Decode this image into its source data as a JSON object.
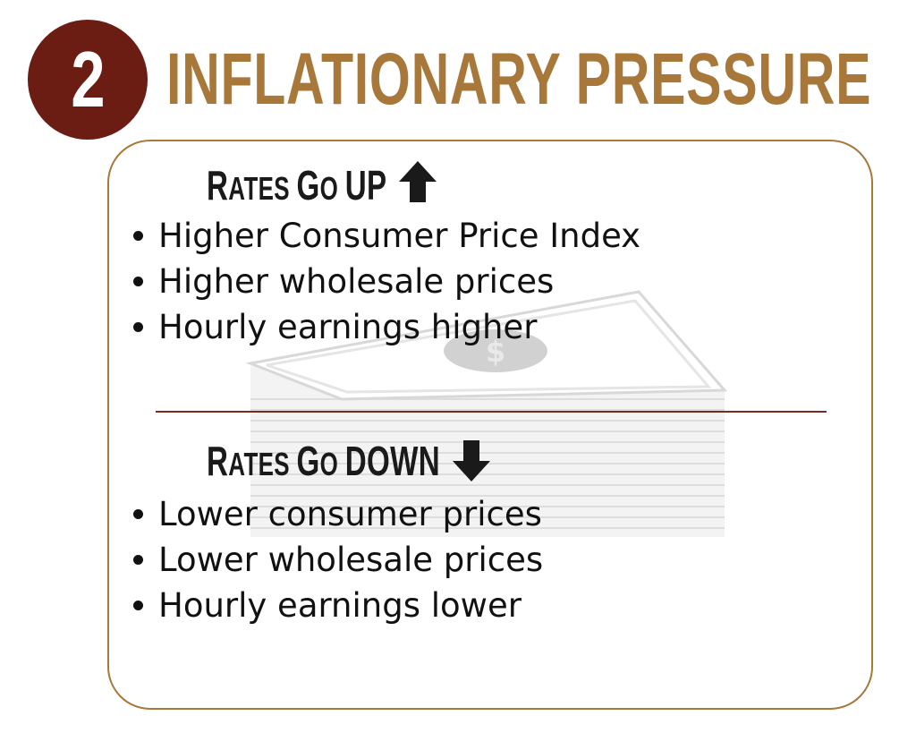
{
  "badge": {
    "number": "2"
  },
  "title": "INFLATIONARY PRESSURE",
  "up": {
    "heading_parts": [
      "R",
      "ATES ",
      "G",
      "O ",
      "UP"
    ],
    "icon": "arrow-up-icon",
    "items": [
      "Higher Consumer Price Index",
      "Higher wholesale prices",
      "Hourly earnings higher"
    ]
  },
  "down": {
    "heading_parts": [
      "R",
      "ATES ",
      "G",
      "O ",
      "DOWN"
    ],
    "icon": "arrow-down-icon",
    "items": [
      "Lower consumer prices",
      "Lower wholesale prices",
      "Hourly earnings lower"
    ]
  },
  "colors": {
    "badge": "#6b1d14",
    "title": "#a8773a",
    "panel_border": "#a8773a",
    "divider": "#7a2a20",
    "text": "#111111"
  },
  "background_image": "money-stack-icon"
}
